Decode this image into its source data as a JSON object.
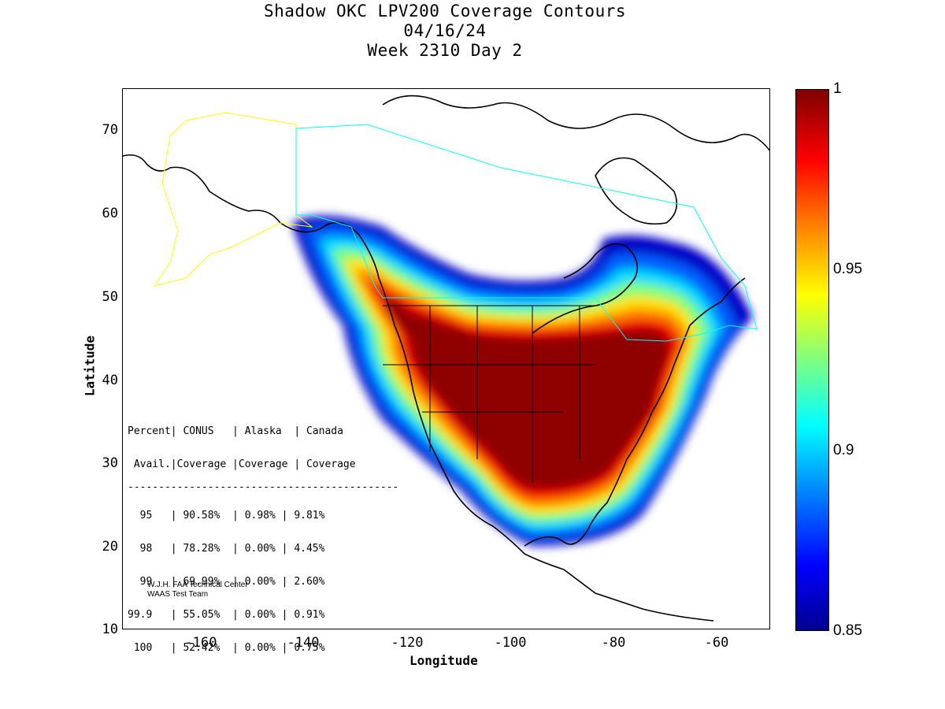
{
  "title": {
    "line1": "Shadow OKC LPV200 Coverage Contours",
    "line2": "04/16/24",
    "line3": "Week 2310 Day 2"
  },
  "axes": {
    "xlabel": "Longitude",
    "ylabel": "Latitude",
    "xticks": [
      "-160",
      "-140",
      "-120",
      "-100",
      "-80",
      "-60"
    ],
    "yticks": [
      "70",
      "60",
      "50",
      "40",
      "30",
      "20",
      "10"
    ]
  },
  "colorbar": {
    "labels": [
      "1",
      "0.95",
      "0.9",
      "0.85"
    ],
    "min": 0.85,
    "max": 1,
    "colormap": "jet"
  },
  "stats": {
    "header1": "Percent| CONUS   | Alaska  | Canada",
    "header2": " Avail.|Coverage |Coverage | Coverage",
    "divider": "--------------------------------------------",
    "rows": [
      "  95   | 90.58%  | 0.98% | 9.81%",
      "  98   | 78.28%  | 0.00% | 4.45%",
      "  99   | 69.99%  | 0.00% | 2.60%",
      "99.9   | 55.05%  | 0.00% | 0.91%",
      " 100   | 52.42%  | 0.00% | 0.75%"
    ]
  },
  "credit": {
    "line1": "W.J.H. FAA Technical Center",
    "line2": "WAAS Test Team"
  },
  "colors": {
    "contour_high": "#7f0000",
    "contour_low": "#00008f",
    "alaska_boundary": "#ffff00",
    "canada_boundary": "#00ffff"
  }
}
